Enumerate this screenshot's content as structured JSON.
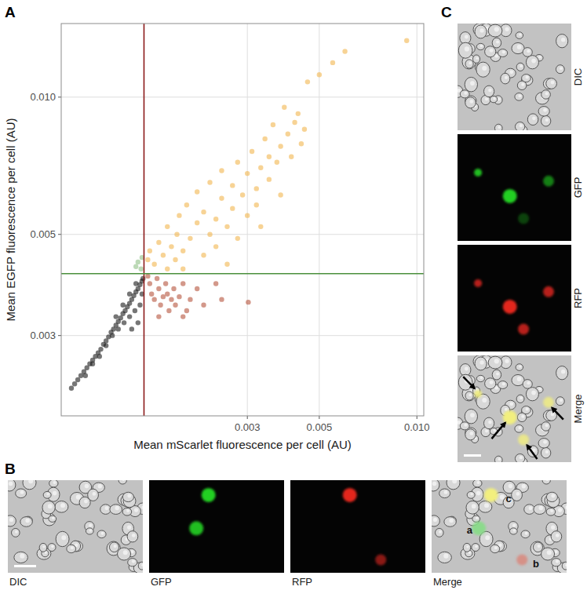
{
  "chart_data": {
    "type": "scatter",
    "x_label": "Mean mScarlet fluorescence per cell (AU)",
    "y_label": "Mean EGFP fluorescence per cell (AU)",
    "log": true,
    "grid": true,
    "xlim": [
      0.0008,
      0.0105
    ],
    "ylim": [
      0.002,
      0.0145
    ],
    "xticks": [
      0.003,
      0.005,
      {
        "value": 0.01,
        "label": "0.010"
      }
    ],
    "yticks": [
      0.003,
      0.005,
      {
        "value": 0.01,
        "label": "0.010"
      }
    ],
    "vlines": [
      {
        "value": 0.00144,
        "color": "#8b1a1a"
      }
    ],
    "hlines": [
      {
        "value": 0.0041,
        "color": "#4a8f3c"
      }
    ],
    "series": [
      {
        "color": "#1a1a1a",
        "marker": "circle",
        "x": [
          0.00086,
          0.00088,
          0.0009,
          0.00092,
          0.00094,
          0.00096,
          0.00098,
          0.001,
          0.00102,
          0.00104,
          0.00106,
          0.00108,
          0.0011,
          0.00112,
          0.00114,
          0.00116,
          0.00118,
          0.0012,
          0.00122,
          0.00124,
          0.00126,
          0.00128,
          0.0013,
          0.00132,
          0.00134,
          0.00136,
          0.00138,
          0.0014,
          0.00142,
          0.00143,
          0.00095,
          0.001,
          0.00105,
          0.0011,
          0.00115,
          0.0012,
          0.00125,
          0.0013,
          0.00135,
          0.0014,
          0.00138,
          0.00132,
          0.00142,
          0.00118,
          0.00124,
          0.0013,
          0.00136
        ],
        "values": [
          0.0023,
          0.00235,
          0.0024,
          0.00245,
          0.0025,
          0.00255,
          0.0026,
          0.00265,
          0.0027,
          0.00275,
          0.0028,
          0.00287,
          0.00292,
          0.00298,
          0.00305,
          0.0031,
          0.00316,
          0.00322,
          0.00328,
          0.00335,
          0.0034,
          0.00347,
          0.00353,
          0.0036,
          0.00367,
          0.00374,
          0.0038,
          0.00388,
          0.00395,
          0.004,
          0.00245,
          0.0026,
          0.0027,
          0.00285,
          0.003,
          0.0031,
          0.0032,
          0.0033,
          0.0034,
          0.0035,
          0.0032,
          0.0031,
          0.0037,
          0.0033,
          0.0035,
          0.0037,
          0.0039
        ]
      },
      {
        "color": "#8fbf85",
        "marker": "circle",
        "x": [
          0.00138,
          0.00141,
          0.00136,
          0.00142
        ],
        "values": [
          0.00435,
          0.0042,
          0.00425,
          0.00445
        ]
      },
      {
        "color": "#b5533c",
        "marker": "circle",
        "x": [
          0.00148,
          0.0015,
          0.00152,
          0.00155,
          0.00158,
          0.0016,
          0.00162,
          0.00165,
          0.00168,
          0.0017,
          0.00172,
          0.00175,
          0.00178,
          0.0018,
          0.00185,
          0.0019,
          0.00195,
          0.002,
          0.0021,
          0.0022,
          0.0024,
          0.0025,
          0.00302,
          0.0016,
          0.0019
        ],
        "values": [
          0.00405,
          0.0039,
          0.0037,
          0.0036,
          0.004,
          0.0038,
          0.0035,
          0.00365,
          0.0039,
          0.0037,
          0.0034,
          0.0036,
          0.0038,
          0.0035,
          0.00365,
          0.0039,
          0.0034,
          0.0036,
          0.0038,
          0.0035,
          0.0039,
          0.0036,
          0.00355,
          0.0033,
          0.0033
        ]
      },
      {
        "color": "#f2b64f",
        "marker": "circle",
        "x": [
          0.00148,
          0.0015,
          0.00155,
          0.0016,
          0.00165,
          0.0017,
          0.00175,
          0.0018,
          0.00182,
          0.00185,
          0.0019,
          0.00195,
          0.002,
          0.0021,
          0.0021,
          0.0022,
          0.0022,
          0.0023,
          0.0023,
          0.0024,
          0.0024,
          0.0025,
          0.0025,
          0.0026,
          0.0027,
          0.0027,
          0.0028,
          0.0028,
          0.0029,
          0.003,
          0.003,
          0.0031,
          0.0032,
          0.0032,
          0.0033,
          0.0034,
          0.0035,
          0.0035,
          0.0036,
          0.0037,
          0.0038,
          0.0039,
          0.004,
          0.0041,
          0.0042,
          0.0043,
          0.0044,
          0.0045,
          0.0046,
          0.005,
          0.0055,
          0.006,
          0.0093,
          0.0033,
          0.0038,
          0.0017,
          0.0019,
          0.0026
        ],
        "values": [
          0.0044,
          0.0046,
          0.0043,
          0.0048,
          0.0045,
          0.0052,
          0.0047,
          0.0044,
          0.005,
          0.0055,
          0.0046,
          0.0058,
          0.0049,
          0.0053,
          0.0062,
          0.0045,
          0.0056,
          0.005,
          0.0065,
          0.0054,
          0.0047,
          0.006,
          0.0069,
          0.0052,
          0.0057,
          0.0064,
          0.0049,
          0.0072,
          0.0061,
          0.0055,
          0.0068,
          0.0076,
          0.0063,
          0.0058,
          0.007,
          0.0081,
          0.0066,
          0.0074,
          0.0087,
          0.0072,
          0.0078,
          0.0095,
          0.0083,
          0.0074,
          0.0088,
          0.0092,
          0.0079,
          0.0085,
          0.0108,
          0.0112,
          0.0119,
          0.0126,
          0.0133,
          0.0052,
          0.0061,
          0.0042,
          0.0042,
          0.0043
        ]
      }
    ]
  },
  "panel_labels": [
    "A",
    "B",
    "C"
  ],
  "images": [
    {
      "labels": [
        "DIC",
        "GFP",
        "RFP",
        "Merge"
      ],
      "cell_labels": [
        "a",
        "b",
        "c"
      ]
    },
    {
      "labels": [
        "DIC",
        "GFP",
        "RFP",
        "Merge"
      ]
    }
  ]
}
